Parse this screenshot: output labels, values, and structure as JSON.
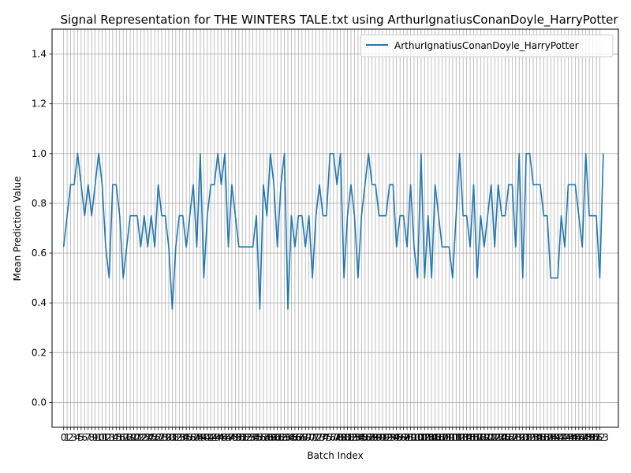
{
  "chart_data": {
    "type": "line",
    "title": "Signal Representation for THE WINTERS TALE.txt using ArthurIgnatiusConanDoyle_HarryPotter",
    "xlabel": "Batch Index",
    "ylabel": "Mean Prediction Value",
    "ylim": [
      -0.1,
      1.5
    ],
    "xlim": [
      -3.3,
      158.3
    ],
    "yticks": [
      0.0,
      0.2,
      0.4,
      0.6,
      0.8,
      1.0,
      1.2,
      1.4
    ],
    "xtick_count": 154,
    "grid": true,
    "legend": "top-right",
    "series": [
      {
        "name": "ArthurIgnatiusConanDoyle_HarryPotter",
        "color": "#1f77b4",
        "values": [
          0.625,
          0.75,
          0.875,
          0.875,
          1.0,
          0.875,
          0.75,
          0.875,
          0.75,
          0.875,
          1.0,
          0.875,
          0.625,
          0.5,
          0.875,
          0.875,
          0.75,
          0.5,
          0.625,
          0.75,
          0.75,
          0.75,
          0.625,
          0.75,
          0.625,
          0.75,
          0.625,
          0.875,
          0.75,
          0.75,
          0.625,
          0.375,
          0.625,
          0.75,
          0.75,
          0.625,
          0.75,
          0.875,
          0.625,
          1.0,
          0.5,
          0.75,
          0.875,
          0.875,
          1.0,
          0.875,
          1.0,
          0.625,
          0.875,
          0.75,
          0.625,
          0.625,
          0.625,
          0.625,
          0.625,
          0.75,
          0.375,
          0.875,
          0.75,
          1.0,
          0.875,
          0.625,
          0.875,
          1.0,
          0.375,
          0.75,
          0.625,
          0.75,
          0.75,
          0.625,
          0.75,
          0.5,
          0.75,
          0.875,
          0.75,
          0.75,
          1.0,
          1.0,
          0.875,
          1.0,
          0.5,
          0.75,
          0.875,
          0.75,
          0.5,
          0.75,
          0.875,
          1.0,
          0.875,
          0.875,
          0.75,
          0.75,
          0.75,
          0.875,
          0.875,
          0.625,
          0.75,
          0.75,
          0.625,
          0.875,
          0.625,
          0.5,
          1.0,
          0.5,
          0.75,
          0.5,
          0.875,
          0.75,
          0.625,
          0.625,
          0.625,
          0.5,
          0.75,
          1.0,
          0.75,
          0.75,
          0.625,
          0.875,
          0.5,
          0.75,
          0.625,
          0.75,
          0.875,
          0.625,
          0.875,
          0.75,
          0.75,
          0.875,
          0.875,
          0.625,
          1.0,
          0.5,
          1.0,
          1.0,
          0.875,
          0.875,
          0.875,
          0.75,
          0.75,
          0.5,
          0.5,
          0.5,
          0.75,
          0.625,
          0.875,
          0.875,
          0.875,
          0.75,
          0.625,
          1.0,
          0.75,
          0.75,
          0.75,
          0.5,
          1.0
        ]
      }
    ]
  }
}
